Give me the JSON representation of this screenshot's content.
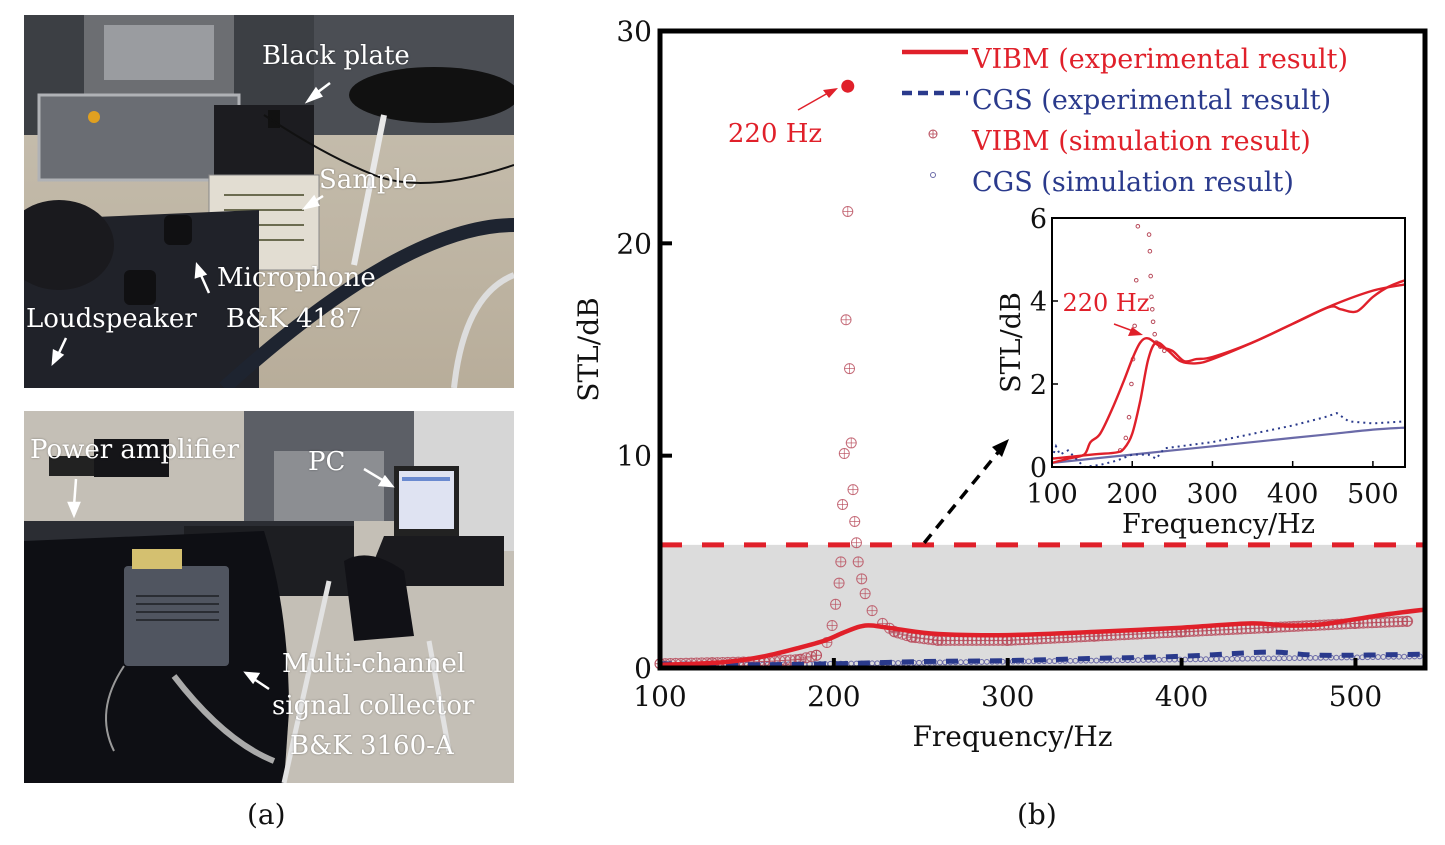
{
  "panel_a": {
    "caption": "(a)",
    "top_photo": {
      "labels": {
        "black_plate": "Black plate",
        "sample": "Sample",
        "microphone_1": "Microphone",
        "microphone_2": "B&K 4187",
        "loudspeaker": "Loudspeaker"
      }
    },
    "bottom_photo": {
      "labels": {
        "power_amplifier": "Power amplifier",
        "pc": "PC",
        "collector_1": "Multi-channel",
        "collector_2": "signal collector",
        "collector_3": "B&K 3160-A"
      }
    }
  },
  "panel_b": {
    "caption": "(b)"
  },
  "colors": {
    "vibm": "#e0202a",
    "cgs": "#2a3a8c",
    "vibm_sim": "#b84a5a",
    "cgs_sim": "#6a6aa8",
    "highlight": "#dcdcdc"
  },
  "chart_data": [
    {
      "type": "line",
      "title": "",
      "xlabel": "Frequency/Hz",
      "ylabel": "STL/dB",
      "xlim": [
        100,
        540
      ],
      "ylim": [
        0,
        30
      ],
      "xticks": [
        100,
        200,
        300,
        400,
        500
      ],
      "yticks": [
        0,
        10,
        20,
        30
      ],
      "xtick_labels": [
        "100",
        "200",
        "300",
        "400",
        "500"
      ],
      "ytick_labels": [
        "0",
        "10",
        "20",
        "30"
      ],
      "legend_position": "top-right",
      "legend": [
        "VIBM (experimental result)",
        "CGS (experimental result)",
        "VIBM (simulation result)",
        "CGS (simulation result)"
      ],
      "annotation": {
        "text": "220 Hz",
        "x": 208,
        "y": 27.4
      },
      "highlight_region": {
        "ymax": 5.8
      },
      "series": [
        {
          "name": "VIBM (experimental result)",
          "style": "solid",
          "x": [
            100,
            120,
            140,
            160,
            180,
            195,
            205,
            215,
            222,
            235,
            260,
            300,
            350,
            400,
            440,
            460,
            480,
            500,
            520,
            540
          ],
          "y": [
            0.15,
            0.2,
            0.3,
            0.55,
            0.95,
            1.3,
            1.65,
            1.95,
            2.0,
            1.85,
            1.6,
            1.55,
            1.7,
            1.9,
            2.1,
            2.0,
            2.05,
            2.3,
            2.55,
            2.75
          ]
        },
        {
          "name": "CGS (experimental result)",
          "style": "dashed",
          "x": [
            100,
            150,
            200,
            250,
            300,
            350,
            400,
            450,
            480,
            540
          ],
          "y": [
            0.2,
            0.15,
            0.2,
            0.3,
            0.35,
            0.45,
            0.55,
            0.75,
            0.6,
            0.65
          ]
        },
        {
          "name": "VIBM (simulation result)",
          "style": "markers",
          "x": [
            100,
            130,
            160,
            180,
            190,
            196,
            199,
            201,
            203,
            204,
            205,
            206,
            207,
            208,
            209,
            210,
            211,
            212,
            213,
            214,
            216,
            218,
            222,
            228,
            235,
            245,
            260,
            300,
            350,
            400,
            450,
            500,
            530
          ],
          "y": [
            0.2,
            0.25,
            0.3,
            0.4,
            0.6,
            1.2,
            2.0,
            3.0,
            4.0,
            5.0,
            7.7,
            10.1,
            16.4,
            21.5,
            14.1,
            10.6,
            8.4,
            6.9,
            5.9,
            5.0,
            4.2,
            3.5,
            2.7,
            2.1,
            1.7,
            1.45,
            1.3,
            1.3,
            1.5,
            1.7,
            1.9,
            2.1,
            2.2
          ]
        },
        {
          "name": "CGS (simulation result)",
          "style": "markers",
          "x": [
            100,
            200,
            300,
            400,
            500,
            540
          ],
          "y": [
            0.1,
            0.2,
            0.3,
            0.4,
            0.5,
            0.55
          ]
        }
      ]
    },
    {
      "type": "line",
      "title": "",
      "xlabel": "Frequency/Hz",
      "ylabel": "STL/dB",
      "xlim": [
        100,
        540
      ],
      "ylim": [
        0,
        6
      ],
      "xticks": [
        100,
        200,
        300,
        400,
        500
      ],
      "yticks": [
        0,
        2,
        4,
        6
      ],
      "xtick_labels": [
        "100",
        "200",
        "300",
        "400",
        "500"
      ],
      "ytick_labels": [
        "0",
        "2",
        "4",
        "6"
      ],
      "annotation": {
        "text": "220 Hz",
        "x": 220,
        "y": 3.1
      },
      "series": [
        {
          "name": "VIBM (experimental result)",
          "style": "solid",
          "x": [
            100,
            120,
            140,
            148,
            160,
            175,
            190,
            200,
            210,
            220,
            235,
            250,
            265,
            280,
            300,
            350,
            400,
            445,
            460,
            480,
            500,
            520,
            540
          ],
          "y": [
            0.1,
            0.2,
            0.3,
            0.6,
            0.8,
            1.4,
            2.1,
            2.6,
            3.0,
            3.1,
            2.9,
            2.8,
            2.55,
            2.6,
            2.65,
            3.0,
            3.45,
            3.85,
            3.8,
            3.75,
            4.1,
            4.35,
            4.5
          ]
        },
        {
          "name": "VIBM (simulation result)",
          "style": "solid",
          "x": [
            100,
            150,
            180,
            190,
            200,
            210,
            220,
            230,
            245,
            260,
            280,
            300,
            350,
            400,
            450,
            500,
            540
          ],
          "y": [
            0.2,
            0.3,
            0.35,
            0.45,
            0.8,
            1.6,
            2.6,
            3.0,
            2.8,
            2.55,
            2.5,
            2.6,
            3.0,
            3.45,
            3.9,
            4.25,
            4.4
          ]
        },
        {
          "name": "VIBM simulation markers",
          "style": "markers",
          "x": [
            185,
            192,
            196,
            199,
            201,
            203,
            205,
            207,
            221,
            222,
            223,
            224,
            225,
            226,
            228,
            230,
            235,
            240
          ],
          "y": [
            0.4,
            0.7,
            1.2,
            2.0,
            2.6,
            3.4,
            4.5,
            5.8,
            5.6,
            5.2,
            4.6,
            4.1,
            3.8,
            3.5,
            3.2,
            3.0,
            2.9,
            2.8
          ]
        },
        {
          "name": "CGS (experimental result)",
          "style": "dotted",
          "x": [
            100,
            105,
            110,
            120,
            140,
            160,
            180,
            200,
            220,
            230,
            240,
            300,
            350,
            400,
            440,
            455,
            470,
            500,
            540
          ],
          "y": [
            0.2,
            0.5,
            0.3,
            0.4,
            0.0,
            0.05,
            0.15,
            0.3,
            0.3,
            0.2,
            0.45,
            0.6,
            0.8,
            1.0,
            1.2,
            1.3,
            1.1,
            1.05,
            1.1
          ]
        },
        {
          "name": "CGS (simulation result)",
          "style": "solid-thin",
          "x": [
            100,
            200,
            300,
            400,
            450,
            500,
            540
          ],
          "y": [
            0.1,
            0.3,
            0.5,
            0.7,
            0.8,
            0.9,
            0.95
          ]
        }
      ]
    }
  ]
}
